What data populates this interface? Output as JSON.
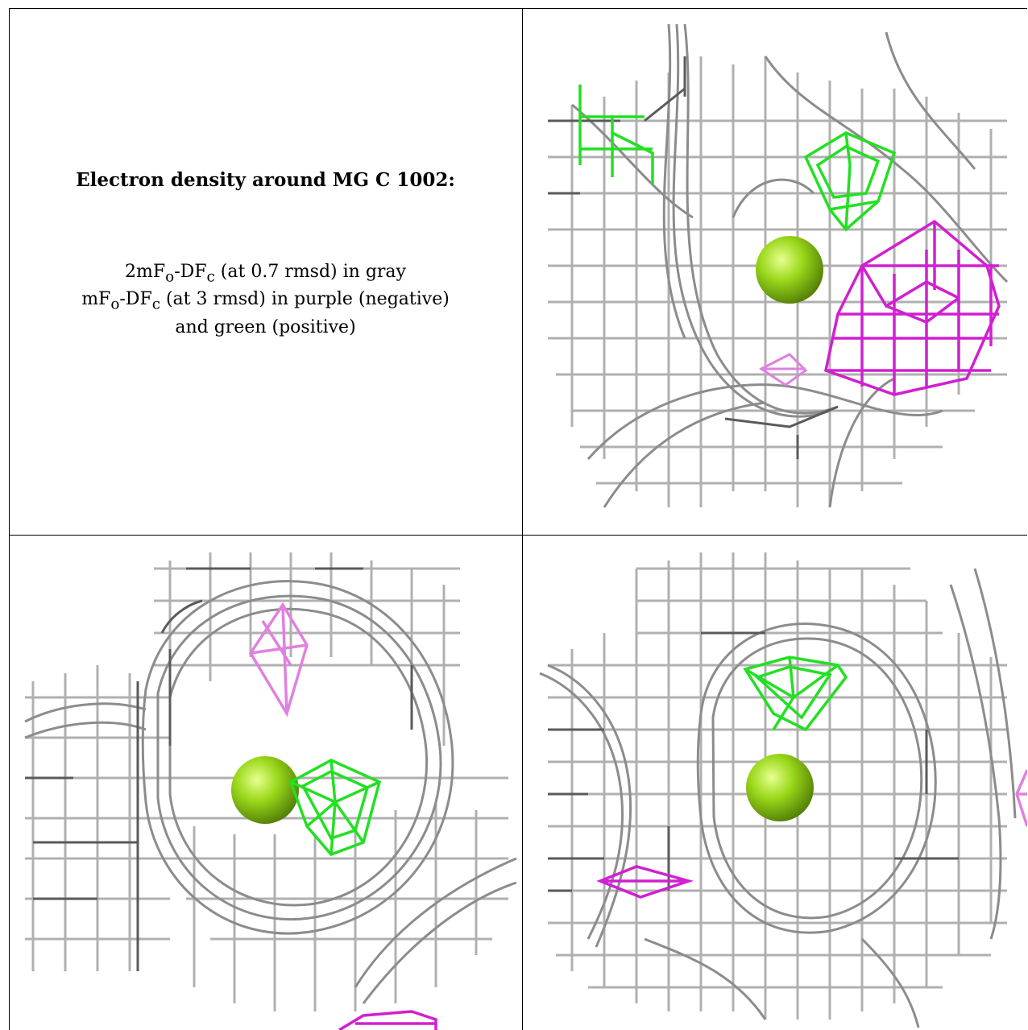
{
  "caption": {
    "title": "Electron density around MG C 1002:",
    "line1_prefix": "2mF",
    "line1_sub_o": "o",
    "line1_mid": "-DF",
    "line1_sub_c": "c",
    "line1_suffix": " (at 0.7 rmsd) in gray",
    "line2_prefix": "mF",
    "line2_sub_o": "o",
    "line2_mid": "-DF",
    "line2_sub_c": "c",
    "line2_suffix": " (at 3 rmsd) in purple (negative)",
    "line3": "and green (positive)"
  },
  "colors": {
    "mesh_gray": "#a0a0a0",
    "mesh_dark": "#606060",
    "negative": "#d020d0",
    "negative_faint": "#e080e0",
    "positive": "#22e022",
    "atom": "#8fd410"
  }
}
